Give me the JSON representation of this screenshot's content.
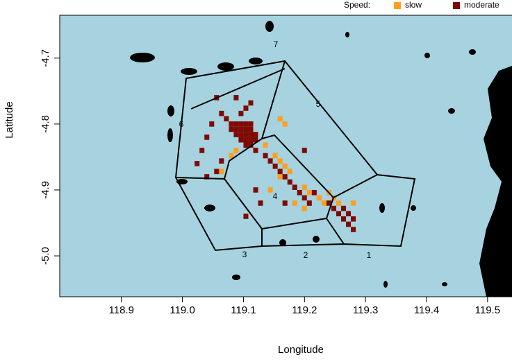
{
  "chart_data": {
    "type": "tiles",
    "xlabel": "Longitude",
    "ylabel": "Latitude",
    "xlim": [
      118.799,
      119.54
    ],
    "ylim": [
      -5.062,
      -4.635
    ],
    "xticks": [
      118.9,
      119.0,
      119.1,
      119.2,
      119.3,
      119.4,
      119.5
    ],
    "yticks": [
      -4.7,
      -4.8,
      -4.9,
      -5.0
    ],
    "legend_title": "Speed:",
    "zones": [
      "1",
      "2",
      "3",
      "4",
      "5",
      "6",
      "7"
    ],
    "series": [
      {
        "name": "slow",
        "color": "#ff9f1c",
        "x": [
          119.136,
          119.152,
          119.16,
          119.168,
          119.176,
          119.16,
          119.2,
          119.208,
          119.224,
          119.232,
          119.248,
          119.256,
          119.16,
          119.168,
          119.088,
          119.08,
          119.2,
          119.144,
          119.184,
          119.28,
          119.24,
          119.064
        ],
        "y": [
          -4.832,
          -4.848,
          -4.856,
          -4.864,
          -4.872,
          -4.88,
          -4.896,
          -4.904,
          -4.912,
          -4.92,
          -4.912,
          -4.92,
          -4.792,
          -4.8,
          -4.84,
          -4.848,
          -4.928,
          -4.9,
          -4.92,
          -4.92,
          -4.904,
          -4.872
        ]
      },
      {
        "name": "moderate",
        "color": "#7f0a05",
        "x": [
          119.08,
          119.088,
          119.096,
          119.104,
          119.112,
          119.08,
          119.088,
          119.096,
          119.104,
          119.112,
          119.088,
          119.096,
          119.104,
          119.112,
          119.12,
          119.096,
          119.104,
          119.112,
          119.12,
          119.104,
          119.112,
          119.096,
          119.104,
          119.112,
          119.088,
          119.072,
          119.064,
          119.04,
          119.032,
          119.024,
          119.04,
          119.056,
          119.064,
          119.12,
          119.136,
          119.144,
          119.152,
          119.16,
          119.168,
          119.176,
          119.184,
          119.192,
          119.2,
          119.208,
          119.216,
          119.24,
          119.248,
          119.256,
          119.264,
          119.272,
          119.28,
          119.272,
          119.264,
          119.28,
          119.12,
          119.128,
          119.104,
          119.168,
          119.048,
          119.056,
          119.2
        ],
        "y": [
          -4.8,
          -4.8,
          -4.8,
          -4.8,
          -4.8,
          -4.808,
          -4.808,
          -4.808,
          -4.808,
          -4.808,
          -4.816,
          -4.816,
          -4.816,
          -4.816,
          -4.816,
          -4.824,
          -4.824,
          -4.824,
          -4.824,
          -4.832,
          -4.832,
          -4.784,
          -4.776,
          -4.768,
          -4.76,
          -4.792,
          -4.784,
          -4.82,
          -4.84,
          -4.86,
          -4.88,
          -4.872,
          -4.856,
          -4.84,
          -4.848,
          -4.856,
          -4.864,
          -4.872,
          -4.88,
          -4.888,
          -4.896,
          -4.904,
          -4.912,
          -4.92,
          -4.904,
          -4.92,
          -4.928,
          -4.936,
          -4.944,
          -4.952,
          -4.96,
          -4.936,
          -4.928,
          -4.944,
          -4.9,
          -4.92,
          -4.94,
          -4.92,
          -4.8,
          -4.76,
          -4.84
        ]
      }
    ]
  }
}
